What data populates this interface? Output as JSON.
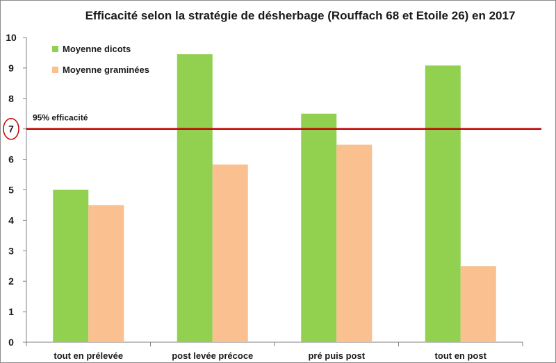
{
  "chart_data": {
    "type": "bar",
    "title": "Efficacité selon la stratégie de désherbage (Rouffach 68 et Etoile 26) en 2017",
    "categories": [
      "tout en prélevée",
      "post levée précoce",
      "pré puis post",
      "tout en post"
    ],
    "series": [
      {
        "name": "Moyenne dicots",
        "color": "#92d050",
        "values": [
          5.0,
          9.45,
          7.5,
          9.08
        ]
      },
      {
        "name": "Moyenne graminées",
        "color": "#fac090",
        "values": [
          4.5,
          5.83,
          6.48,
          2.5
        ]
      }
    ],
    "ylim": [
      0,
      10
    ],
    "yticks": [
      0,
      1,
      2,
      3,
      4,
      5,
      6,
      7,
      8,
      9,
      10
    ],
    "grid": false,
    "legend": "top-left",
    "reference_line": {
      "value": 7,
      "label": "95% efficacité",
      "color": "#c00000",
      "circled_tick": 7
    }
  }
}
